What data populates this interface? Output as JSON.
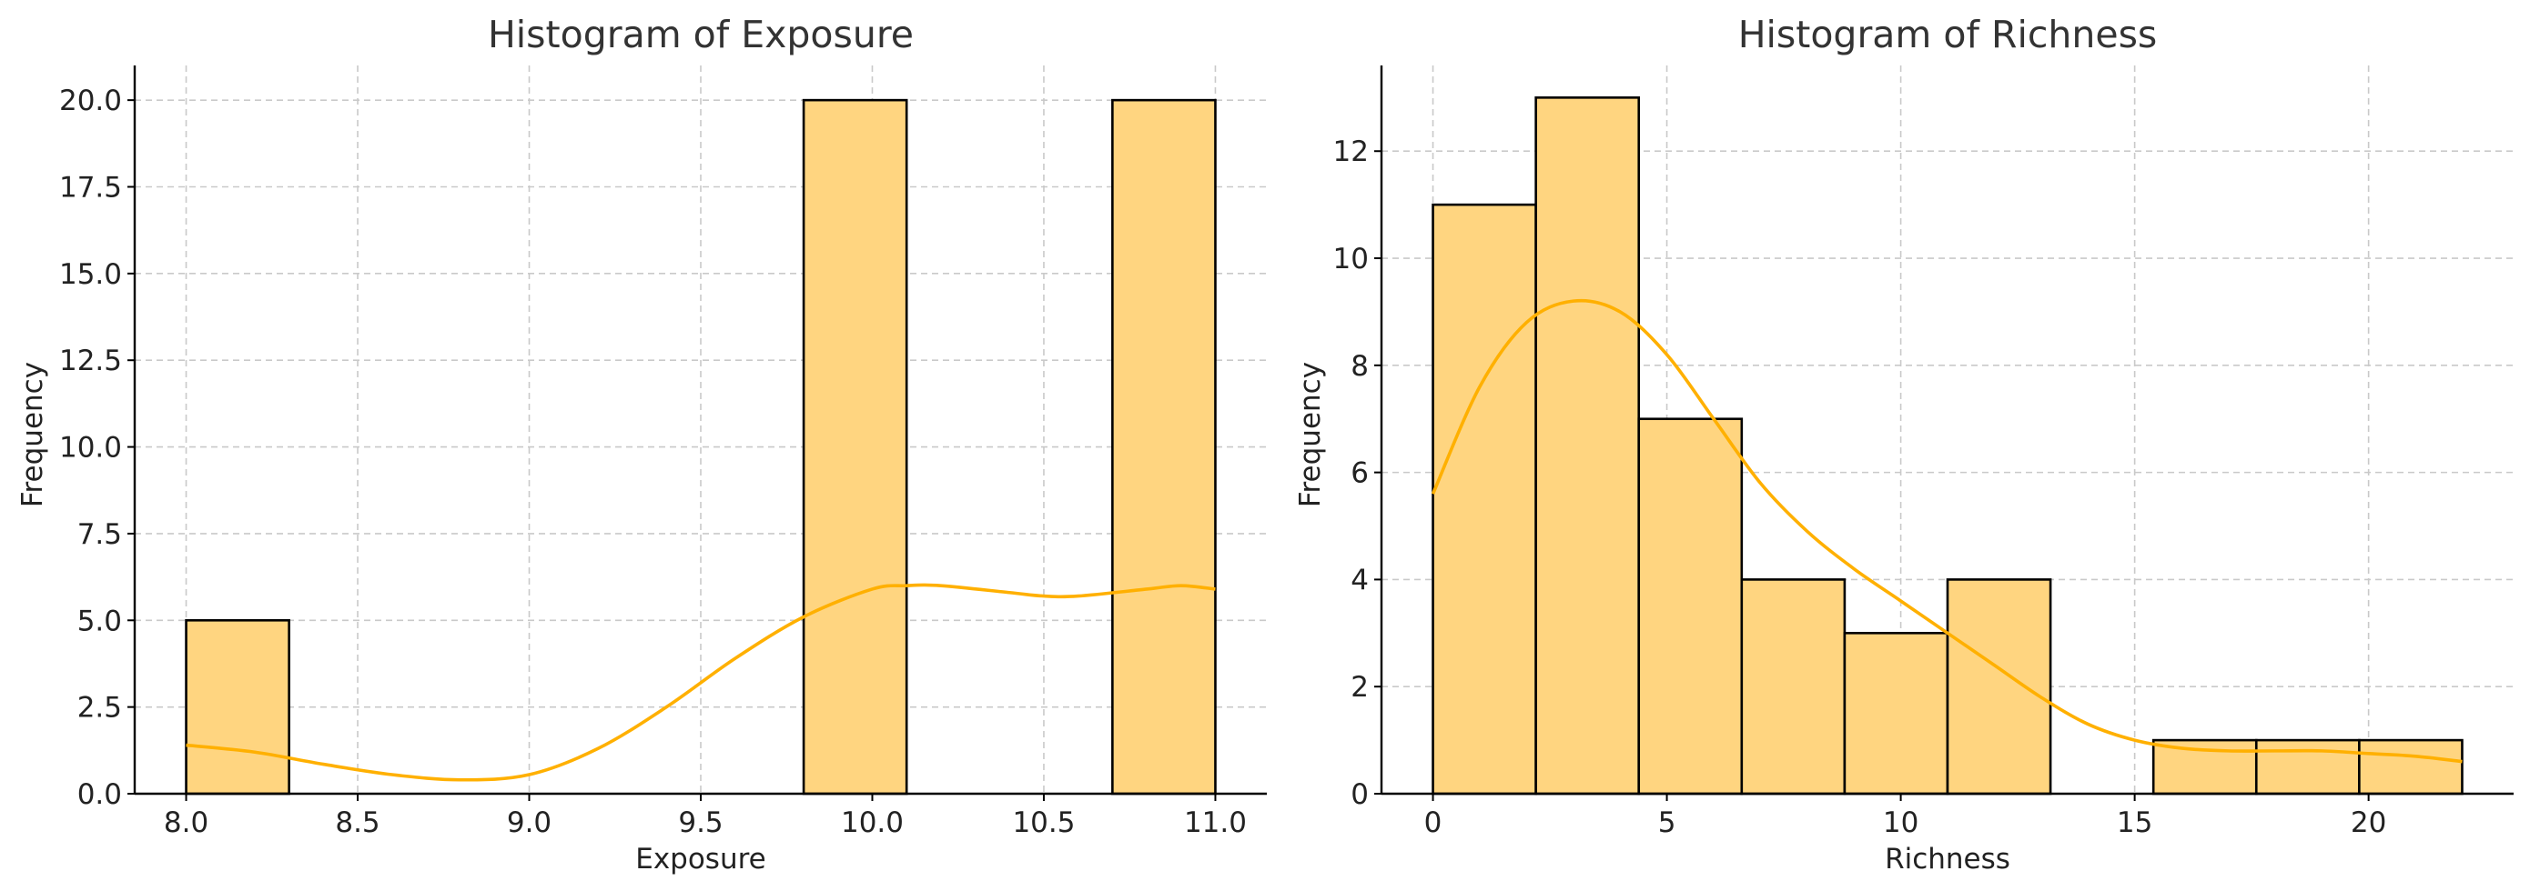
{
  "chart_data": [
    {
      "type": "histogram",
      "title": "Histogram of Exposure",
      "xlabel": "Exposure",
      "ylabel": "Frequency",
      "xlim": [
        7.85,
        11.15
      ],
      "ylim": [
        0,
        21
      ],
      "xticks": [
        "8.0",
        "8.5",
        "9.0",
        "9.5",
        "10.0",
        "10.5",
        "11.0"
      ],
      "xtick_values": [
        8.0,
        8.5,
        9.0,
        9.5,
        10.0,
        10.5,
        11.0
      ],
      "yticks": [
        "0.0",
        "2.5",
        "5.0",
        "7.5",
        "10.0",
        "12.5",
        "15.0",
        "17.5",
        "20.0"
      ],
      "ytick_values": [
        0,
        2.5,
        5,
        7.5,
        10,
        12.5,
        15,
        17.5,
        20
      ],
      "bins": [
        {
          "x0": 8.0,
          "x1": 8.3,
          "count": 5
        },
        {
          "x0": 9.8,
          "x1": 10.1,
          "count": 20
        },
        {
          "x0": 10.7,
          "x1": 11.0,
          "count": 20
        }
      ],
      "kde": {
        "x": [
          8.0,
          8.2,
          8.4,
          8.6,
          8.8,
          9.0,
          9.2,
          9.4,
          9.6,
          9.8,
          10.0,
          10.1,
          10.2,
          10.4,
          10.5,
          10.6,
          10.8,
          10.9,
          11.0
        ],
        "y": [
          1.4,
          1.2,
          0.85,
          0.55,
          0.4,
          0.55,
          1.3,
          2.5,
          3.9,
          5.1,
          5.9,
          6.0,
          6.0,
          5.8,
          5.7,
          5.7,
          5.9,
          6.0,
          5.9
        ]
      },
      "grid": true,
      "color": "#FFD580",
      "line_color": "#FFB000"
    },
    {
      "type": "histogram",
      "title": "Histogram of Richness",
      "xlabel": "Richness",
      "ylabel": "Frequency",
      "xlim": [
        -1.1,
        23.1
      ],
      "ylim": [
        0,
        13.6
      ],
      "xticks": [
        "0",
        "5",
        "10",
        "15",
        "20"
      ],
      "xtick_values": [
        0,
        5,
        10,
        15,
        20
      ],
      "yticks": [
        "0",
        "2",
        "4",
        "6",
        "8",
        "10",
        "12"
      ],
      "ytick_values": [
        0,
        2,
        4,
        6,
        8,
        10,
        12
      ],
      "bins": [
        {
          "x0": 0.0,
          "x1": 2.2,
          "count": 11
        },
        {
          "x0": 2.2,
          "x1": 4.4,
          "count": 13
        },
        {
          "x0": 4.4,
          "x1": 6.6,
          "count": 7
        },
        {
          "x0": 6.6,
          "x1": 8.8,
          "count": 4
        },
        {
          "x0": 8.8,
          "x1": 11.0,
          "count": 3
        },
        {
          "x0": 11.0,
          "x1": 13.2,
          "count": 4
        },
        {
          "x0": 13.2,
          "x1": 15.4,
          "count": 0
        },
        {
          "x0": 15.4,
          "x1": 17.6,
          "count": 1
        },
        {
          "x0": 17.6,
          "x1": 19.8,
          "count": 1
        },
        {
          "x0": 19.8,
          "x1": 22.0,
          "count": 1
        }
      ],
      "kde": {
        "x": [
          0,
          1,
          2,
          3,
          4,
          5,
          6,
          7,
          8,
          9,
          10,
          11,
          12,
          13,
          14,
          15,
          16,
          17,
          18,
          19,
          20,
          21,
          22
        ],
        "y": [
          5.6,
          7.6,
          8.8,
          9.2,
          9.0,
          8.2,
          7.0,
          5.8,
          4.9,
          4.2,
          3.6,
          3.0,
          2.4,
          1.8,
          1.3,
          1.0,
          0.85,
          0.8,
          0.8,
          0.8,
          0.75,
          0.7,
          0.6
        ]
      },
      "grid": true,
      "color": "#FFD580",
      "line_color": "#FFB000"
    }
  ]
}
